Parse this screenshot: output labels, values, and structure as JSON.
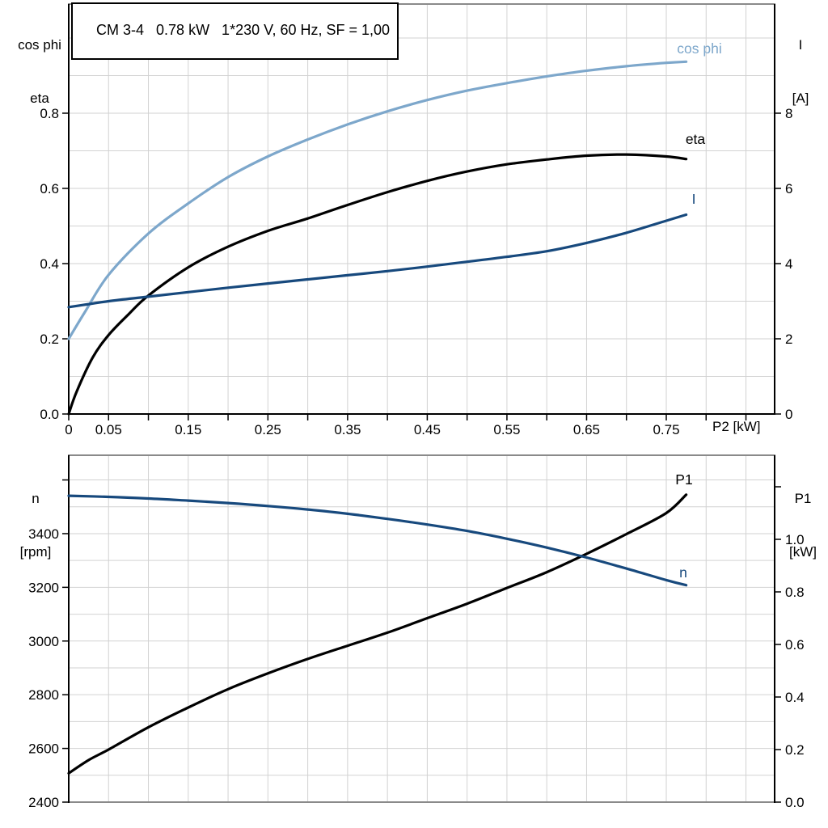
{
  "title": "CM 3-4   0.78 kW   1*230 V, 60 Hz, SF = 1,00",
  "axis_labels": {
    "top_left": [
      "cos phi",
      "eta"
    ],
    "top_right": [
      "I",
      "[A]"
    ],
    "bottom_left": [
      "n",
      "[rpm]"
    ],
    "bottom_right": [
      "P1",
      "[kW]"
    ],
    "x_axis": "P2 [kW]"
  },
  "colors": {
    "light_blue": "#7da7cb",
    "dark_blue": "#17497d",
    "black": "#000000",
    "grid": "#d2d2d2",
    "frame": "#8a8a8a"
  },
  "chart_data": [
    {
      "id": "top",
      "type": "line",
      "x_axis": {
        "label": "P2 [kW]",
        "min": 0,
        "max": 0.886,
        "grid_step": 0.05,
        "show_axis_line": true,
        "ticks": [
          [
            0,
            "0"
          ],
          [
            0.05,
            "0.05"
          ],
          [
            0.1,
            ""
          ],
          [
            0.15,
            "0.15"
          ],
          [
            0.2,
            ""
          ],
          [
            0.25,
            "0.25"
          ],
          [
            0.3,
            ""
          ],
          [
            0.35,
            "0.35"
          ],
          [
            0.4,
            ""
          ],
          [
            0.45,
            "0.45"
          ],
          [
            0.5,
            ""
          ],
          [
            0.55,
            "0.55"
          ],
          [
            0.6,
            ""
          ],
          [
            0.65,
            "0.65"
          ],
          [
            0.7,
            ""
          ],
          [
            0.75,
            "0.75"
          ],
          [
            0.8,
            ""
          ],
          [
            0.85,
            ""
          ]
        ]
      },
      "y_left": {
        "label": "cos phi / eta",
        "min": 0,
        "max": 1.0903,
        "grid_min": 0.1,
        "grid_max": 1.0,
        "grid_step": 0.1,
        "ticks": [
          [
            0,
            "0.0"
          ],
          [
            0.2,
            "0.2"
          ],
          [
            0.4,
            "0.4"
          ],
          [
            0.6,
            "0.6"
          ],
          [
            0.8,
            "0.8"
          ]
        ]
      },
      "y_right": {
        "label": "I [A]",
        "min": 0,
        "max": 10.903,
        "ticks": [
          [
            0,
            "0"
          ],
          [
            2,
            "2"
          ],
          [
            4,
            "4"
          ],
          [
            6,
            "6"
          ],
          [
            8,
            "8"
          ]
        ]
      },
      "series": [
        {
          "name": "cos phi",
          "axis": "left",
          "color_key": "light_blue",
          "label": {
            "text": "cos phi",
            "x": 865,
            "y": 66
          },
          "points": [
            [
              0,
              0.2
            ],
            [
              0.02,
              0.27
            ],
            [
              0.05,
              0.37
            ],
            [
              0.1,
              0.48
            ],
            [
              0.15,
              0.56
            ],
            [
              0.2,
              0.63
            ],
            [
              0.25,
              0.685
            ],
            [
              0.3,
              0.73
            ],
            [
              0.35,
              0.77
            ],
            [
              0.4,
              0.805
            ],
            [
              0.45,
              0.835
            ],
            [
              0.5,
              0.86
            ],
            [
              0.55,
              0.88
            ],
            [
              0.6,
              0.898
            ],
            [
              0.65,
              0.913
            ],
            [
              0.7,
              0.925
            ],
            [
              0.75,
              0.934
            ],
            [
              0.775,
              0.937
            ]
          ]
        },
        {
          "name": "eta",
          "axis": "left",
          "color_key": "black",
          "label": {
            "text": "eta",
            "x": 860,
            "y": 178
          },
          "points": [
            [
              0,
              0
            ],
            [
              0.01,
              0.06
            ],
            [
              0.03,
              0.15
            ],
            [
              0.05,
              0.21
            ],
            [
              0.075,
              0.265
            ],
            [
              0.1,
              0.315
            ],
            [
              0.15,
              0.39
            ],
            [
              0.2,
              0.445
            ],
            [
              0.25,
              0.487
            ],
            [
              0.3,
              0.52
            ],
            [
              0.35,
              0.556
            ],
            [
              0.4,
              0.59
            ],
            [
              0.45,
              0.62
            ],
            [
              0.5,
              0.645
            ],
            [
              0.55,
              0.664
            ],
            [
              0.6,
              0.677
            ],
            [
              0.65,
              0.687
            ],
            [
              0.7,
              0.69
            ],
            [
              0.75,
              0.685
            ],
            [
              0.775,
              0.678
            ]
          ]
        },
        {
          "name": "I",
          "axis": "right",
          "color_key": "dark_blue",
          "label": {
            "text": "I",
            "x": 858,
            "y": 252
          },
          "points": [
            [
              0,
              2.84
            ],
            [
              0.05,
              3.0
            ],
            [
              0.1,
              3.12
            ],
            [
              0.15,
              3.24
            ],
            [
              0.2,
              3.36
            ],
            [
              0.25,
              3.47
            ],
            [
              0.3,
              3.58
            ],
            [
              0.35,
              3.69
            ],
            [
              0.4,
              3.8
            ],
            [
              0.45,
              3.92
            ],
            [
              0.5,
              4.05
            ],
            [
              0.55,
              4.18
            ],
            [
              0.6,
              4.33
            ],
            [
              0.65,
              4.55
            ],
            [
              0.7,
              4.82
            ],
            [
              0.75,
              5.14
            ],
            [
              0.775,
              5.3
            ]
          ]
        }
      ]
    },
    {
      "id": "bottom",
      "type": "line",
      "x_axis": {
        "label": "",
        "min": 0,
        "max": 0.886,
        "grid_step": 0.05,
        "show_axis_line": false,
        "ticks": []
      },
      "y_left": {
        "label": "n [rpm]",
        "min": 2400,
        "max": 3692,
        "grid_min": 2500,
        "grid_max": 3600,
        "grid_step": 100,
        "ticks": [
          [
            2400,
            "2400"
          ],
          [
            2600,
            "2600"
          ],
          [
            2800,
            "2800"
          ],
          [
            3000,
            "3000"
          ],
          [
            3200,
            "3200"
          ],
          [
            3400,
            "3400"
          ],
          [
            3600,
            ""
          ]
        ]
      },
      "y_right": {
        "label": "P1 [kW]",
        "min": 0,
        "max": 1.32,
        "ticks": [
          [
            0,
            "0.0"
          ],
          [
            0.2,
            "0.2"
          ],
          [
            0.4,
            "0.4"
          ],
          [
            0.6,
            "0.6"
          ],
          [
            0.8,
            "0.8"
          ],
          [
            1.0,
            "1.0"
          ],
          [
            1.2,
            ""
          ]
        ]
      },
      "series": [
        {
          "name": "P1",
          "axis": "right",
          "color_key": "black",
          "label": {
            "text": "P1",
            "x": 846,
            "y": 599
          },
          "points": [
            [
              0,
              0.11
            ],
            [
              0.025,
              0.16
            ],
            [
              0.05,
              0.2
            ],
            [
              0.1,
              0.285
            ],
            [
              0.15,
              0.36
            ],
            [
              0.2,
              0.43
            ],
            [
              0.25,
              0.49
            ],
            [
              0.3,
              0.545
            ],
            [
              0.35,
              0.595
            ],
            [
              0.4,
              0.645
            ],
            [
              0.45,
              0.7
            ],
            [
              0.5,
              0.755
            ],
            [
              0.55,
              0.815
            ],
            [
              0.6,
              0.875
            ],
            [
              0.65,
              0.945
            ],
            [
              0.7,
              1.02
            ],
            [
              0.75,
              1.1
            ],
            [
              0.775,
              1.17
            ]
          ]
        },
        {
          "name": "n",
          "axis": "left",
          "color_key": "dark_blue",
          "label": {
            "text": "n",
            "x": 845,
            "y": 714
          },
          "points": [
            [
              0,
              3541
            ],
            [
              0.05,
              3537
            ],
            [
              0.1,
              3531
            ],
            [
              0.15,
              3523
            ],
            [
              0.2,
              3514
            ],
            [
              0.25,
              3503
            ],
            [
              0.3,
              3490
            ],
            [
              0.35,
              3474
            ],
            [
              0.4,
              3455
            ],
            [
              0.45,
              3434
            ],
            [
              0.5,
              3410
            ],
            [
              0.55,
              3381
            ],
            [
              0.6,
              3348
            ],
            [
              0.65,
              3311
            ],
            [
              0.7,
              3270
            ],
            [
              0.75,
              3227
            ],
            [
              0.775,
              3208
            ]
          ]
        }
      ]
    }
  ]
}
